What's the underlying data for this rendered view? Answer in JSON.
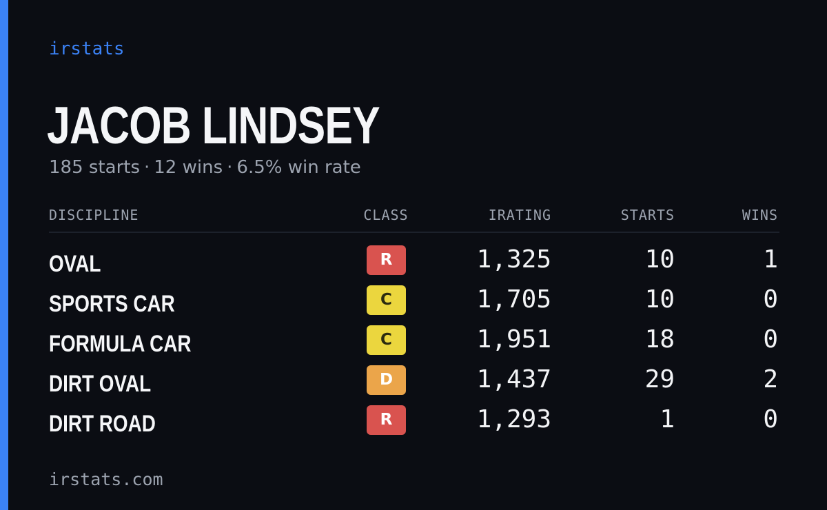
{
  "brand": "irstats",
  "player": {
    "name": "JACOB LINDSEY",
    "starts_text": "185 starts",
    "wins_text": "12 wins",
    "win_rate_text": "6.5% win rate",
    "separator": "·"
  },
  "table": {
    "headers": {
      "discipline": "DISCIPLINE",
      "class": "CLASS",
      "irating": "IRATING",
      "starts": "STARTS",
      "wins": "WINS"
    },
    "rows": [
      {
        "discipline": "OVAL",
        "class": "R",
        "class_color": "#d9534f",
        "class_text_color": "#ffffff",
        "irating": "1,325",
        "starts": "10",
        "wins": "1"
      },
      {
        "discipline": "SPORTS CAR",
        "class": "C",
        "class_color": "#ebd63e",
        "class_text_color": "#2b2b10",
        "irating": "1,705",
        "starts": "10",
        "wins": "0"
      },
      {
        "discipline": "FORMULA CAR",
        "class": "C",
        "class_color": "#ebd63e",
        "class_text_color": "#2b2b10",
        "irating": "1,951",
        "starts": "18",
        "wins": "0"
      },
      {
        "discipline": "DIRT OVAL",
        "class": "D",
        "class_color": "#eba54a",
        "class_text_color": "#ffffff",
        "irating": "1,437",
        "starts": "29",
        "wins": "2"
      },
      {
        "discipline": "DIRT ROAD",
        "class": "R",
        "class_color": "#d9534f",
        "class_text_color": "#ffffff",
        "irating": "1,293",
        "starts": "1",
        "wins": "0"
      }
    ]
  },
  "footer": "irstats.com",
  "colors": {
    "background": "#0b0d13",
    "accent": "#3b82f6",
    "muted_text": "#9ca3af",
    "primary_text": "#f5f6f8"
  }
}
